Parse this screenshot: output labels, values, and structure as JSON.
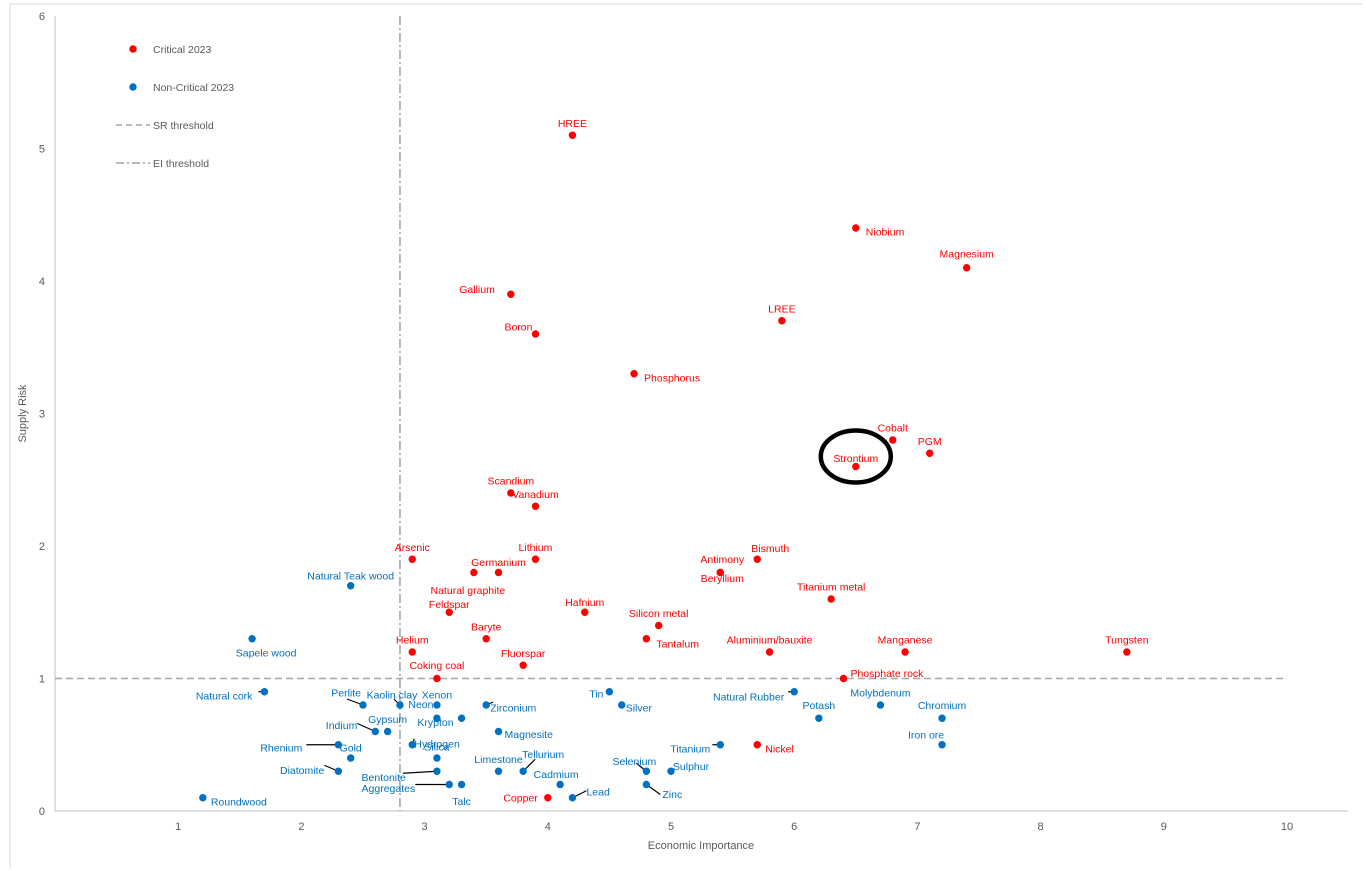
{
  "colors": {
    "critical": "#ff0000",
    "non_critical": "#0070c0",
    "threshold": "#a6a6a6",
    "axis": "#bfbfbf",
    "text": "#595959"
  },
  "chart_data": {
    "type": "scatter",
    "xlabel": "Economic Importance",
    "ylabel": "Supply Risk",
    "xlim": [
      0,
      10
    ],
    "ylim": [
      0,
      6
    ],
    "x_ticks": [
      "1",
      "2",
      "3",
      "4",
      "5",
      "6",
      "7",
      "8",
      "9",
      "10"
    ],
    "y_ticks": [
      "0",
      "1",
      "2",
      "3",
      "4",
      "5",
      "6"
    ],
    "grid": false,
    "legend_position": "top-left",
    "thresholds": {
      "sr": 1.0,
      "ei": 2.8
    },
    "legend": [
      {
        "label": "Critical 2023",
        "kind": "dot-critical"
      },
      {
        "label": "Non-Critical 2023",
        "kind": "dot-noncritical"
      },
      {
        "label": "SR threshold",
        "kind": "dash"
      },
      {
        "label": "EI threshold",
        "kind": "dashdot"
      }
    ],
    "highlight": {
      "x": 6.5,
      "y": 2.6,
      "shape": "ellipse"
    },
    "series": [
      {
        "name": "Critical 2023",
        "points": [
          {
            "label": "HREE",
            "x": 4.2,
            "y": 5.1
          },
          {
            "label": "Niobium",
            "x": 6.5,
            "y": 4.4
          },
          {
            "label": "Magnesium",
            "x": 7.4,
            "y": 4.1
          },
          {
            "label": "Gallium",
            "x": 3.7,
            "y": 3.9
          },
          {
            "label": "LREE",
            "x": 5.9,
            "y": 3.7
          },
          {
            "label": "Boron",
            "x": 3.9,
            "y": 3.6
          },
          {
            "label": "Phosphorus",
            "x": 4.7,
            "y": 3.3
          },
          {
            "label": "Cobalt",
            "x": 6.8,
            "y": 2.8
          },
          {
            "label": "PGM",
            "x": 7.1,
            "y": 2.7
          },
          {
            "label": "Strontium",
            "x": 6.5,
            "y": 2.6
          },
          {
            "label": "Scandium",
            "x": 3.7,
            "y": 2.4
          },
          {
            "label": "Vanadium",
            "x": 3.9,
            "y": 2.3
          },
          {
            "label": "Arsenic",
            "x": 2.9,
            "y": 1.9
          },
          {
            "label": "Lithium",
            "x": 3.9,
            "y": 1.9
          },
          {
            "label": "Bismuth",
            "x": 5.7,
            "y": 1.9
          },
          {
            "label": "Germanium",
            "x": 3.6,
            "y": 1.8
          },
          {
            "label": "Natural graphite",
            "x": 3.4,
            "y": 1.8
          },
          {
            "label": "Antimony",
            "x": 5.4,
            "y": 1.8
          },
          {
            "label": "Beryllium",
            "x": 5.4,
            "y": 1.8
          },
          {
            "label": "Titanium metal",
            "x": 6.3,
            "y": 1.6
          },
          {
            "label": "Feldspar",
            "x": 3.2,
            "y": 1.5
          },
          {
            "label": "Hafnium",
            "x": 4.3,
            "y": 1.5
          },
          {
            "label": "Silicon metal",
            "x": 4.9,
            "y": 1.4
          },
          {
            "label": "Baryte",
            "x": 3.5,
            "y": 1.3
          },
          {
            "label": "Tantalum",
            "x": 4.8,
            "y": 1.3
          },
          {
            "label": "Helium",
            "x": 2.9,
            "y": 1.2
          },
          {
            "label": "Aluminium/bauxite",
            "x": 5.8,
            "y": 1.2
          },
          {
            "label": "Manganese",
            "x": 6.9,
            "y": 1.2
          },
          {
            "label": "Tungsten",
            "x": 8.7,
            "y": 1.2
          },
          {
            "label": "Fluorspar",
            "x": 3.8,
            "y": 1.1
          },
          {
            "label": "Coking coal",
            "x": 3.1,
            "y": 1.0
          },
          {
            "label": "Phosphate rock",
            "x": 6.4,
            "y": 1.0
          },
          {
            "label": "Nickel",
            "x": 5.7,
            "y": 0.5
          },
          {
            "label": "Copper",
            "x": 4.0,
            "y": 0.1
          }
        ]
      },
      {
        "name": "Non-Critical 2023",
        "points": [
          {
            "label": "Natural Teak wood",
            "x": 2.4,
            "y": 1.7
          },
          {
            "label": "Sapele wood",
            "x": 1.6,
            "y": 1.3
          },
          {
            "label": "Natural cork",
            "x": 1.7,
            "y": 0.9
          },
          {
            "label": "Tin",
            "x": 4.5,
            "y": 0.9
          },
          {
            "label": "Natural Rubber",
            "x": 6.0,
            "y": 0.9
          },
          {
            "label": "Perlite",
            "x": 2.5,
            "y": 0.8
          },
          {
            "label": "Kaolin clay",
            "x": 2.8,
            "y": 0.8
          },
          {
            "label": "Xenon",
            "x": 3.1,
            "y": 0.8
          },
          {
            "label": "Zirconium",
            "x": 3.5,
            "y": 0.8
          },
          {
            "label": "Silver",
            "x": 4.6,
            "y": 0.8
          },
          {
            "label": "Molybdenum",
            "x": 6.7,
            "y": 0.8
          },
          {
            "label": "Krypton",
            "x": 3.3,
            "y": 0.7
          },
          {
            "label": "Neon",
            "x": 3.1,
            "y": 0.7
          },
          {
            "label": "Potash",
            "x": 6.2,
            "y": 0.7
          },
          {
            "label": "Chromium",
            "x": 7.2,
            "y": 0.7
          },
          {
            "label": "Indium",
            "x": 2.6,
            "y": 0.6
          },
          {
            "label": "Gypsum",
            "x": 2.7,
            "y": 0.6
          },
          {
            "label": "Magnesite",
            "x": 3.6,
            "y": 0.6
          },
          {
            "label": "Rhenium",
            "x": 2.3,
            "y": 0.5
          },
          {
            "label": "Hydrogen",
            "x": 2.9,
            "y": 0.5
          },
          {
            "label": "Titanium",
            "x": 5.4,
            "y": 0.5
          },
          {
            "label": "Iron ore",
            "x": 7.2,
            "y": 0.5
          },
          {
            "label": "Gold",
            "x": 2.4,
            "y": 0.4
          },
          {
            "label": "Silica",
            "x": 3.1,
            "y": 0.4
          },
          {
            "label": "Bentonite",
            "x": 3.1,
            "y": 0.3
          },
          {
            "label": "Diatomite",
            "x": 2.3,
            "y": 0.3
          },
          {
            "label": "Limestone",
            "x": 3.6,
            "y": 0.3
          },
          {
            "label": "Tellurium",
            "x": 3.8,
            "y": 0.3
          },
          {
            "label": "Selenium",
            "x": 4.8,
            "y": 0.3
          },
          {
            "label": "Sulphur",
            "x": 5.0,
            "y": 0.3
          },
          {
            "label": "Aggregates",
            "x": 3.2,
            "y": 0.2
          },
          {
            "label": "Talc",
            "x": 3.3,
            "y": 0.2
          },
          {
            "label": "Cadmium",
            "x": 4.1,
            "y": 0.2
          },
          {
            "label": "Zinc",
            "x": 4.8,
            "y": 0.2
          },
          {
            "label": "Roundwood",
            "x": 1.2,
            "y": 0.1
          },
          {
            "label": "Lead",
            "x": 4.2,
            "y": 0.1
          }
        ]
      }
    ]
  }
}
